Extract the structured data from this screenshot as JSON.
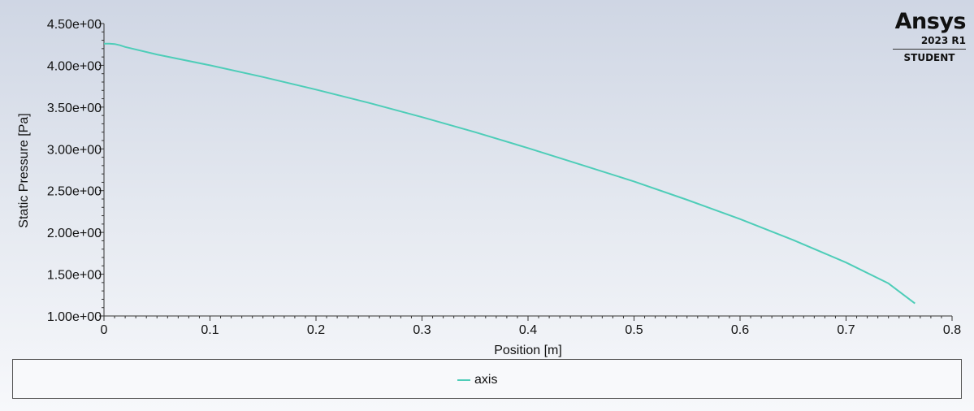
{
  "logo": {
    "brand": "Ansys",
    "version": "2023 R1",
    "edition": "STUDENT"
  },
  "colors": {
    "series": "#4ecdb8",
    "axis": "#333333",
    "text": "#111111"
  },
  "chart_data": {
    "type": "line",
    "title": "",
    "xlabel": "Position [m]",
    "ylabel": "Static Pressure [Pa]",
    "xlim": [
      0,
      0.8
    ],
    "ylim": [
      1.0,
      4.5
    ],
    "x_ticks": [
      0,
      0.1,
      0.2,
      0.3,
      0.4,
      0.5,
      0.6,
      0.7,
      0.8
    ],
    "x_tick_labels": [
      "0",
      "0.1",
      "0.2",
      "0.3",
      "0.4",
      "0.5",
      "0.6",
      "0.7",
      "0.8"
    ],
    "y_ticks": [
      1.0,
      1.5,
      2.0,
      2.5,
      3.0,
      3.5,
      4.0,
      4.5
    ],
    "y_tick_labels": [
      "1.00e+00",
      "1.50e+00",
      "2.00e+00",
      "2.50e+00",
      "3.00e+00",
      "3.50e+00",
      "4.00e+00",
      "4.50e+00"
    ],
    "grid": false,
    "legend_position": "bottom",
    "series": [
      {
        "name": "axis",
        "x": [
          0,
          0.005,
          0.01,
          0.015,
          0.02,
          0.05,
          0.1,
          0.15,
          0.2,
          0.25,
          0.3,
          0.35,
          0.4,
          0.45,
          0.5,
          0.55,
          0.6,
          0.65,
          0.7,
          0.74,
          0.765
        ],
        "y": [
          4.26,
          4.26,
          4.255,
          4.24,
          4.22,
          4.13,
          4.0,
          3.86,
          3.71,
          3.55,
          3.38,
          3.2,
          3.01,
          2.81,
          2.61,
          2.39,
          2.16,
          1.91,
          1.64,
          1.39,
          1.15
        ]
      }
    ]
  }
}
